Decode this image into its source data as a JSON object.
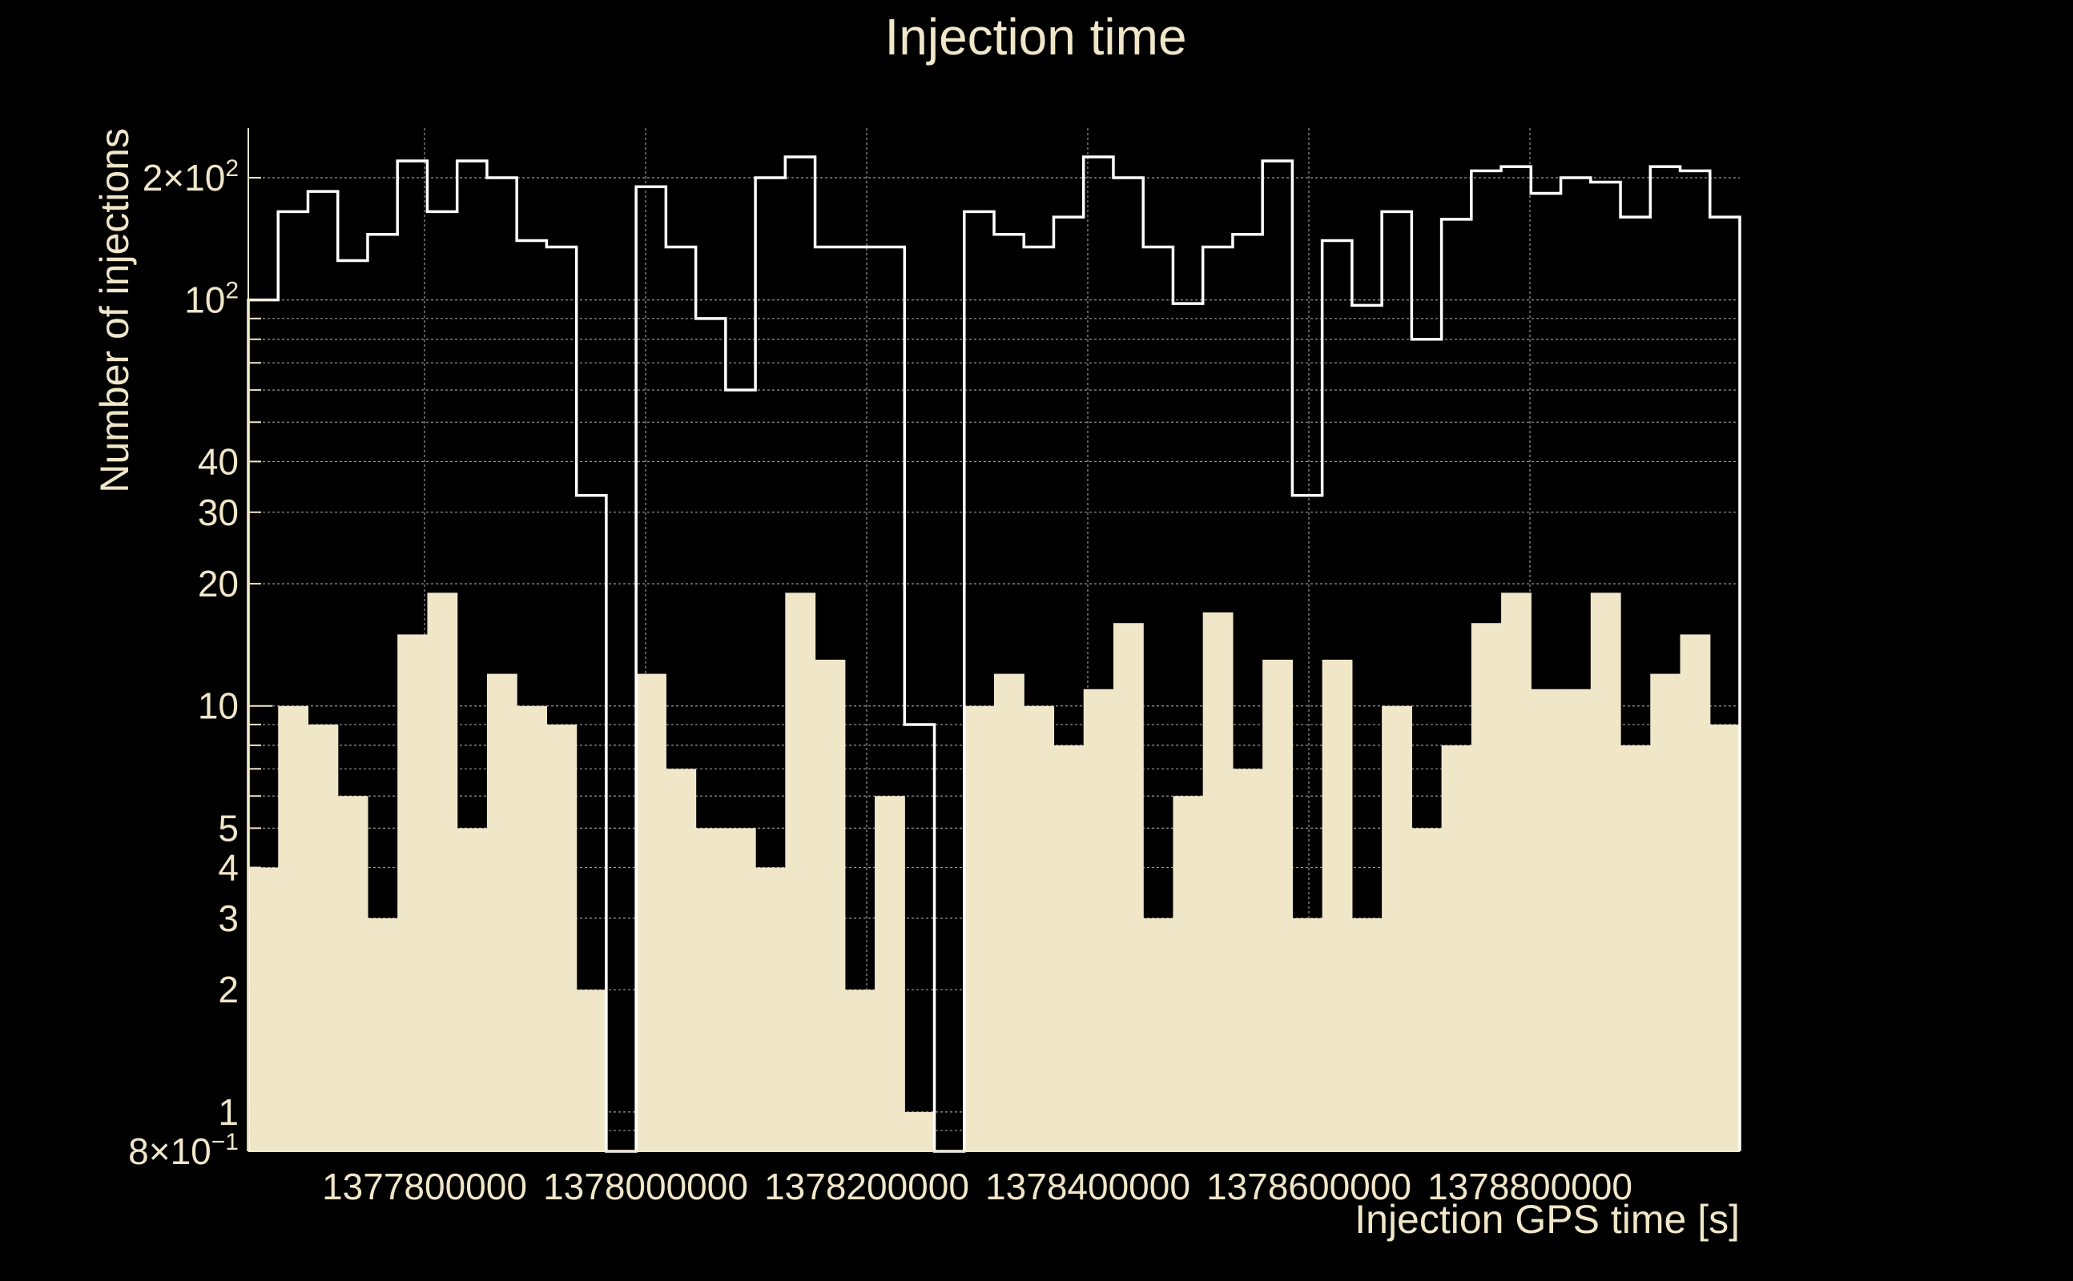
{
  "chart_data": {
    "type": "bar",
    "title": "Injection time",
    "xlabel": "Injection GPS time [s]",
    "ylabel": "Number of injections",
    "yscale": "log",
    "ylim": [
      0.8,
      265
    ],
    "x_tick_labels": [
      "1377800000",
      "1378000000",
      "1378200000",
      "1378400000",
      "1378600000",
      "1378800000"
    ],
    "x_tick_values": [
      1377800000,
      1378000000,
      1378200000,
      1378400000,
      1378600000,
      1378800000
    ],
    "y_tick_labels": [
      {
        "value": 0.8,
        "label": "8×10",
        "sup": "−1"
      },
      {
        "value": 1,
        "label": "1"
      },
      {
        "value": 2,
        "label": "2"
      },
      {
        "value": 3,
        "label": "3"
      },
      {
        "value": 4,
        "label": "4"
      },
      {
        "value": 5,
        "label": "5"
      },
      {
        "value": 10,
        "label": "10"
      },
      {
        "value": 20,
        "label": "20"
      },
      {
        "value": 30,
        "label": "30"
      },
      {
        "value": 40,
        "label": "40"
      },
      {
        "value": 100,
        "label": "10",
        "sup": "2"
      },
      {
        "value": 200,
        "label": "2×10",
        "sup": "2"
      }
    ],
    "grid": true,
    "bins": 50,
    "series": [
      {
        "style": "step-outline",
        "color": "#ffffff",
        "values": [
          100,
          165,
          185,
          125,
          145,
          220,
          165,
          220,
          200,
          140,
          135,
          33,
          0,
          190,
          135,
          90,
          60,
          200,
          225,
          135,
          135,
          135,
          9,
          0,
          165,
          145,
          135,
          160,
          225,
          200,
          135,
          98,
          135,
          145,
          220,
          33,
          140,
          97,
          165,
          80,
          158,
          208,
          213,
          183,
          200,
          195,
          160,
          213,
          208,
          160
        ]
      },
      {
        "style": "filled",
        "color": "#f0e6c8",
        "values": [
          4,
          10,
          9,
          6,
          3,
          15,
          19,
          5,
          12,
          10,
          9,
          2,
          0,
          12,
          7,
          5,
          5,
          4,
          19,
          13,
          2,
          6,
          1,
          0,
          10,
          12,
          10,
          8,
          11,
          16,
          3,
          6,
          17,
          7,
          13,
          3,
          13,
          3,
          10,
          5,
          8,
          16,
          19,
          11,
          11,
          19,
          8,
          12,
          15,
          9
        ]
      }
    ],
    "colors": {
      "background": "#000000",
      "text": "#f0e6c8",
      "grid": "#9a9a9a"
    }
  }
}
